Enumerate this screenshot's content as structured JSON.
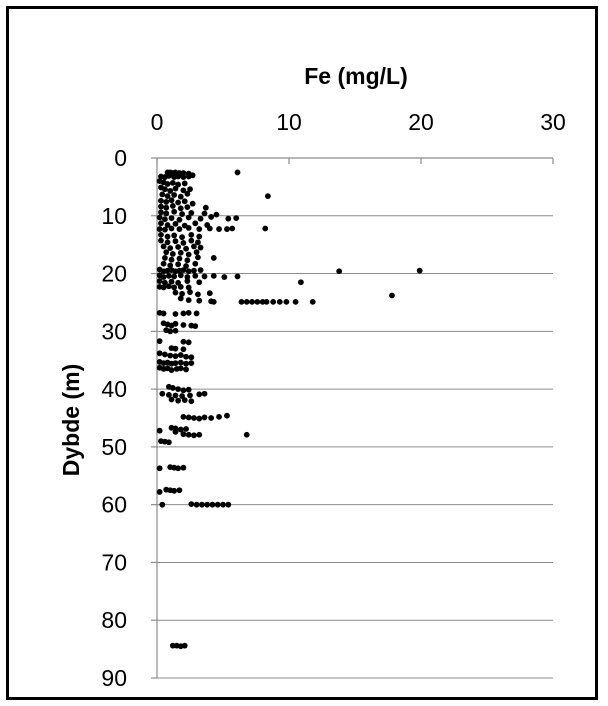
{
  "chart_data": {
    "type": "scatter",
    "title": "Fe (mg/L)",
    "xlabel": "Fe (mg/L)",
    "ylabel": "Dybde (m)",
    "xlim": [
      0,
      30
    ],
    "ylim": [
      0,
      90
    ],
    "y_inverted": true,
    "x_axis_position": "top",
    "x_ticks": [
      "0",
      "10",
      "20",
      "30"
    ],
    "y_ticks": [
      "0",
      "10",
      "20",
      "30",
      "40",
      "50",
      "60",
      "70",
      "80",
      "90"
    ],
    "grid": "horizontal",
    "legend": "none",
    "marker_color": "#000000",
    "series": [
      {
        "points": [
          [
            0.8,
            2.5
          ],
          [
            1.0,
            2.5
          ],
          [
            1.2,
            2.6
          ],
          [
            1.4,
            2.5
          ],
          [
            1.7,
            2.6
          ],
          [
            2.0,
            2.6
          ],
          [
            2.4,
            2.7
          ],
          [
            2.7,
            3.0
          ],
          [
            6.1,
            2.5
          ],
          [
            0.3,
            3.2
          ],
          [
            0.6,
            3.3
          ],
          [
            0.9,
            3.1
          ],
          [
            1.3,
            3.3
          ],
          [
            1.6,
            3.2
          ],
          [
            2.0,
            3.3
          ],
          [
            2.4,
            3.2
          ],
          [
            0.2,
            4.0
          ],
          [
            0.5,
            4.2
          ],
          [
            0.8,
            4.5
          ],
          [
            1.2,
            4.3
          ],
          [
            1.6,
            4.6
          ],
          [
            2.1,
            4.4
          ],
          [
            0.3,
            5.1
          ],
          [
            0.6,
            5.4
          ],
          [
            1.0,
            5.7
          ],
          [
            1.4,
            5.3
          ],
          [
            2.0,
            5.6
          ],
          [
            2.5,
            5.4
          ],
          [
            0.4,
            6.3
          ],
          [
            0.8,
            6.6
          ],
          [
            1.3,
            6.4
          ],
          [
            1.8,
            6.7
          ],
          [
            2.3,
            6.2
          ],
          [
            8.4,
            6.6
          ],
          [
            0.3,
            7.4
          ],
          [
            0.7,
            7.6
          ],
          [
            1.1,
            7.3
          ],
          [
            1.6,
            7.7
          ],
          [
            2.1,
            7.5
          ],
          [
            2.7,
            7.9
          ],
          [
            0.3,
            8.4
          ],
          [
            0.7,
            8.6
          ],
          [
            1.2,
            8.3
          ],
          [
            1.8,
            8.7
          ],
          [
            2.3,
            8.5
          ],
          [
            3.7,
            8.6
          ],
          [
            0.3,
            9.4
          ],
          [
            0.7,
            9.6
          ],
          [
            1.3,
            9.3
          ],
          [
            1.9,
            9.7
          ],
          [
            2.6,
            9.5
          ],
          [
            3.6,
            9.6
          ],
          [
            4.5,
            9.8
          ],
          [
            0.2,
            10.3
          ],
          [
            0.6,
            10.6
          ],
          [
            1.1,
            10.4
          ],
          [
            1.7,
            10.7
          ],
          [
            2.4,
            10.3
          ],
          [
            3.3,
            10.5
          ],
          [
            4.1,
            10.2
          ],
          [
            5.4,
            10.5
          ],
          [
            6.0,
            10.4
          ],
          [
            0.3,
            11.3
          ],
          [
            0.8,
            11.6
          ],
          [
            1.4,
            11.4
          ],
          [
            2.1,
            11.7
          ],
          [
            2.9,
            11.3
          ],
          [
            3.8,
            11.6
          ],
          [
            0.2,
            12.3
          ],
          [
            0.6,
            12.4
          ],
          [
            1.1,
            12.2
          ],
          [
            1.7,
            12.3
          ],
          [
            2.4,
            12.1
          ],
          [
            3.2,
            12.3
          ],
          [
            4.0,
            12.2
          ],
          [
            4.7,
            12.3
          ],
          [
            5.3,
            12.3
          ],
          [
            5.7,
            12.2
          ],
          [
            8.2,
            12.2
          ],
          [
            0.3,
            13.3
          ],
          [
            0.8,
            13.6
          ],
          [
            1.3,
            13.4
          ],
          [
            1.9,
            13.7
          ],
          [
            2.6,
            13.3
          ],
          [
            3.2,
            13.6
          ],
          [
            0.3,
            14.3
          ],
          [
            0.8,
            14.6
          ],
          [
            1.4,
            14.4
          ],
          [
            2.0,
            14.7
          ],
          [
            2.6,
            14.3
          ],
          [
            3.1,
            14.6
          ],
          [
            0.5,
            15.3
          ],
          [
            1.0,
            15.6
          ],
          [
            1.6,
            15.4
          ],
          [
            2.2,
            15.7
          ],
          [
            2.8,
            15.3
          ],
          [
            3.3,
            15.5
          ],
          [
            0.7,
            16.3
          ],
          [
            1.2,
            16.6
          ],
          [
            1.8,
            16.4
          ],
          [
            2.4,
            16.7
          ],
          [
            3.0,
            16.3
          ],
          [
            0.6,
            17.3
          ],
          [
            1.1,
            17.6
          ],
          [
            1.7,
            17.4
          ],
          [
            2.3,
            17.7
          ],
          [
            3.1,
            17.2
          ],
          [
            4.3,
            17.3
          ],
          [
            0.5,
            18.3
          ],
          [
            1.0,
            18.6
          ],
          [
            1.6,
            18.4
          ],
          [
            2.2,
            18.7
          ],
          [
            2.9,
            18.3
          ],
          [
            0.2,
            19.3
          ],
          [
            0.5,
            19.6
          ],
          [
            0.8,
            19.5
          ],
          [
            1.1,
            19.4
          ],
          [
            1.4,
            19.6
          ],
          [
            1.7,
            19.5
          ],
          [
            2.0,
            19.4
          ],
          [
            2.4,
            19.6
          ],
          [
            2.8,
            19.5
          ],
          [
            3.3,
            19.4
          ],
          [
            13.8,
            19.6
          ],
          [
            19.9,
            19.5
          ],
          [
            0.2,
            20.3
          ],
          [
            0.5,
            20.6
          ],
          [
            0.9,
            20.4
          ],
          [
            1.3,
            20.5
          ],
          [
            1.8,
            20.3
          ],
          [
            2.3,
            20.6
          ],
          [
            2.9,
            20.4
          ],
          [
            3.6,
            20.5
          ],
          [
            4.3,
            20.4
          ],
          [
            5.1,
            20.6
          ],
          [
            6.1,
            20.5
          ],
          [
            0.2,
            21.3
          ],
          [
            0.6,
            21.6
          ],
          [
            1.1,
            21.4
          ],
          [
            1.6,
            21.6
          ],
          [
            2.3,
            21.3
          ],
          [
            3.2,
            21.5
          ],
          [
            10.9,
            21.5
          ],
          [
            0.2,
            22.3
          ],
          [
            0.5,
            22.4
          ],
          [
            0.9,
            22.2
          ],
          [
            1.3,
            22.4
          ],
          [
            1.8,
            22.3
          ],
          [
            2.4,
            22.4
          ],
          [
            1.4,
            23.3
          ],
          [
            1.9,
            23.5
          ],
          [
            2.5,
            23.2
          ],
          [
            3.1,
            23.6
          ],
          [
            4.0,
            23.4
          ],
          [
            17.8,
            23.8
          ],
          [
            1.8,
            24.3
          ],
          [
            2.4,
            24.6
          ],
          [
            3.2,
            24.7
          ],
          [
            4.1,
            24.8
          ],
          [
            4.3,
            24.9
          ],
          [
            6.4,
            24.9
          ],
          [
            6.8,
            24.9
          ],
          [
            7.2,
            24.9
          ],
          [
            7.6,
            24.9
          ],
          [
            8.0,
            24.9
          ],
          [
            8.3,
            24.9
          ],
          [
            8.8,
            24.9
          ],
          [
            9.3,
            24.9
          ],
          [
            9.8,
            24.9
          ],
          [
            10.5,
            24.9
          ],
          [
            11.8,
            24.9
          ],
          [
            0.2,
            26.8
          ],
          [
            0.5,
            26.9
          ],
          [
            1.4,
            27.0
          ],
          [
            2.0,
            26.9
          ],
          [
            2.4,
            26.8
          ],
          [
            3.0,
            26.9
          ],
          [
            0.5,
            28.6
          ],
          [
            0.8,
            28.8
          ],
          [
            1.1,
            29.0
          ],
          [
            1.4,
            28.7
          ],
          [
            2.0,
            28.9
          ],
          [
            2.6,
            29.0
          ],
          [
            2.9,
            29.1
          ],
          [
            0.7,
            29.8
          ],
          [
            1.0,
            30.0
          ],
          [
            1.4,
            29.9
          ],
          [
            0.2,
            31.7
          ],
          [
            2.0,
            31.8
          ],
          [
            2.4,
            31.9
          ],
          [
            1.1,
            32.9
          ],
          [
            1.4,
            33.0
          ],
          [
            2.0,
            33.1
          ],
          [
            0.2,
            33.8
          ],
          [
            0.6,
            34.0
          ],
          [
            1.0,
            34.2
          ],
          [
            1.4,
            34.3
          ],
          [
            1.8,
            34.1
          ],
          [
            2.2,
            34.4
          ],
          [
            2.6,
            34.5
          ],
          [
            0.2,
            35.3
          ],
          [
            0.5,
            35.5
          ],
          [
            0.8,
            35.4
          ],
          [
            1.1,
            35.6
          ],
          [
            1.4,
            35.5
          ],
          [
            1.8,
            35.4
          ],
          [
            2.2,
            35.6
          ],
          [
            2.6,
            35.5
          ],
          [
            0.2,
            36.3
          ],
          [
            0.5,
            36.5
          ],
          [
            0.8,
            36.4
          ],
          [
            1.1,
            36.7
          ],
          [
            1.5,
            36.5
          ],
          [
            1.8,
            36.4
          ],
          [
            2.2,
            36.6
          ],
          [
            0.9,
            39.6
          ],
          [
            1.2,
            39.8
          ],
          [
            1.6,
            40.0
          ],
          [
            2.0,
            40.2
          ],
          [
            2.4,
            40.1
          ],
          [
            0.4,
            40.8
          ],
          [
            0.9,
            41.0
          ],
          [
            1.4,
            41.1
          ],
          [
            1.9,
            41.2
          ],
          [
            2.5,
            41.1
          ],
          [
            3.2,
            40.9
          ],
          [
            3.6,
            40.8
          ],
          [
            1.1,
            41.8
          ],
          [
            1.6,
            42.0
          ],
          [
            2.1,
            41.9
          ],
          [
            2.6,
            42.1
          ],
          [
            2.0,
            44.8
          ],
          [
            2.4,
            44.9
          ],
          [
            2.8,
            45.0
          ],
          [
            3.2,
            45.1
          ],
          [
            3.6,
            44.9
          ],
          [
            4.1,
            45.0
          ],
          [
            4.7,
            44.8
          ],
          [
            5.3,
            44.6
          ],
          [
            1.1,
            46.7
          ],
          [
            1.4,
            46.8
          ],
          [
            1.8,
            47.0
          ],
          [
            2.2,
            46.9
          ],
          [
            0.2,
            47.2
          ],
          [
            1.4,
            47.4
          ],
          [
            2.0,
            47.8
          ],
          [
            2.4,
            47.9
          ],
          [
            2.8,
            48.0
          ],
          [
            3.2,
            47.9
          ],
          [
            6.8,
            47.9
          ],
          [
            0.3,
            49.0
          ],
          [
            0.6,
            49.1
          ],
          [
            0.9,
            49.2
          ],
          [
            1.0,
            53.5
          ],
          [
            1.3,
            53.6
          ],
          [
            1.6,
            53.7
          ],
          [
            2.0,
            53.6
          ],
          [
            0.2,
            53.7
          ],
          [
            0.7,
            57.4
          ],
          [
            1.0,
            57.5
          ],
          [
            1.3,
            57.6
          ],
          [
            1.7,
            57.5
          ],
          [
            0.2,
            57.8
          ],
          [
            0.4,
            60.0
          ],
          [
            2.6,
            59.9
          ],
          [
            3.0,
            60.0
          ],
          [
            3.4,
            60.0
          ],
          [
            3.8,
            60.0
          ],
          [
            4.2,
            60.0
          ],
          [
            4.6,
            60.0
          ],
          [
            5.0,
            60.0
          ],
          [
            5.4,
            60.0
          ],
          [
            1.2,
            84.4
          ],
          [
            1.5,
            84.4
          ],
          [
            1.8,
            84.5
          ],
          [
            2.1,
            84.4
          ]
        ]
      }
    ]
  }
}
